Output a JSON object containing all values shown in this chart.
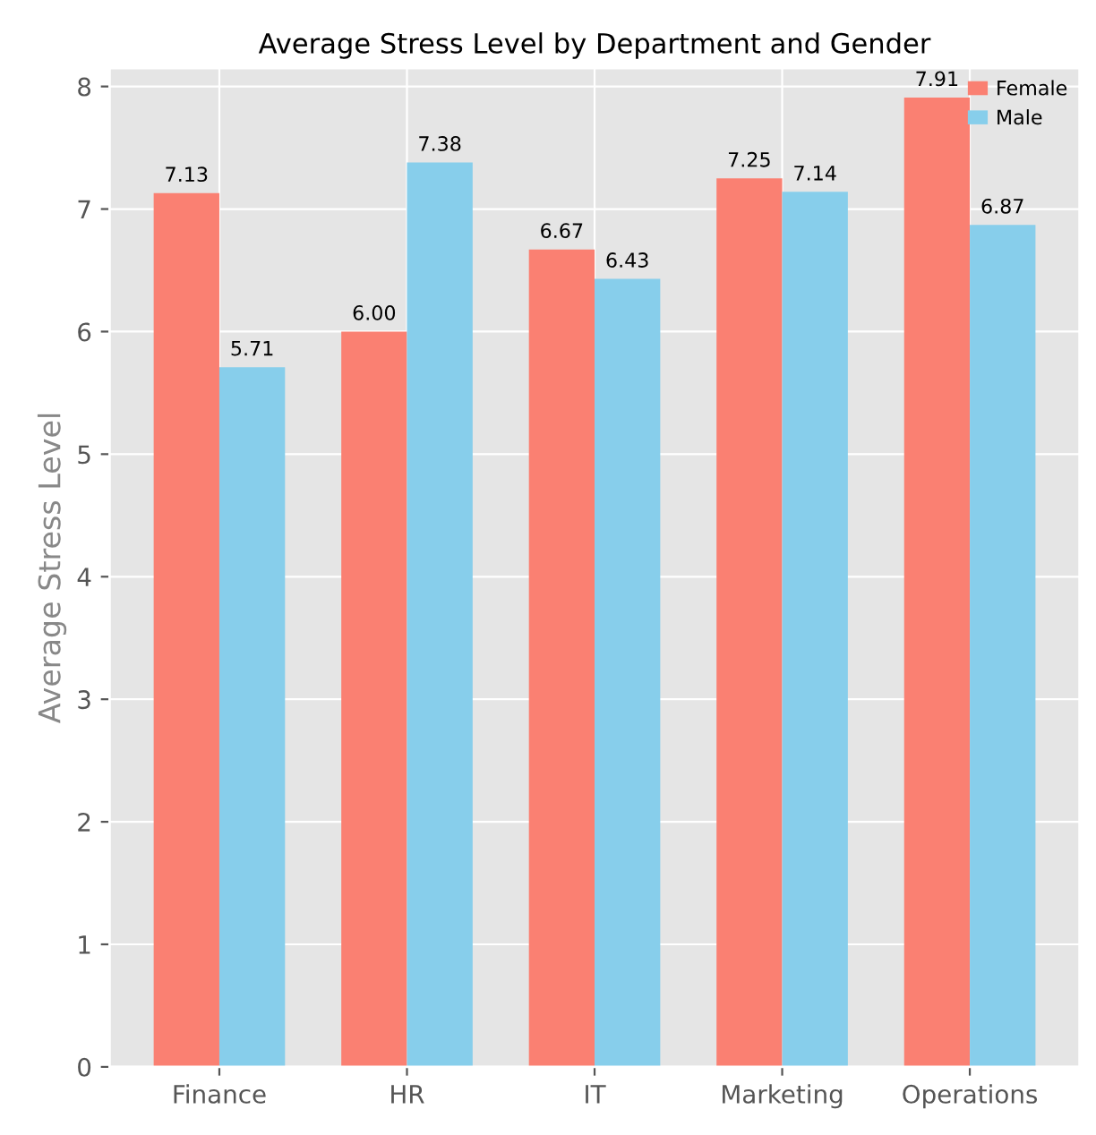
{
  "chart_data": {
    "type": "bar",
    "title": "Average Stress Level by Department and Gender",
    "ylabel": "Average Stress Level",
    "categories": [
      "Finance",
      "HR",
      "IT",
      "Marketing",
      "Operations"
    ],
    "series": [
      {
        "name": "Female",
        "color": "#fa8072",
        "values": [
          7.13,
          6.0,
          6.67,
          7.25,
          7.91
        ],
        "value_labels": [
          "7.13",
          "6.00",
          "6.67",
          "7.25",
          "7.91"
        ]
      },
      {
        "name": "Male",
        "color": "#87ceeb",
        "values": [
          5.71,
          7.38,
          6.43,
          7.14,
          6.87
        ],
        "value_labels": [
          "5.71",
          "7.38",
          "6.43",
          "7.14",
          "6.87"
        ]
      }
    ],
    "ylim": [
      0,
      8.15
    ],
    "yticks": [
      0,
      1,
      2,
      3,
      4,
      5,
      6,
      7,
      8
    ],
    "grid": true,
    "legend": "top right"
  }
}
